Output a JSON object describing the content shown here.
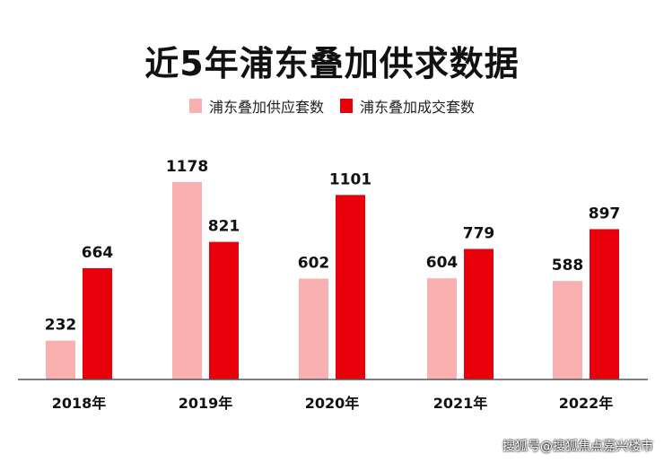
{
  "chart_data": {
    "type": "bar",
    "title": "近5年浦东叠加供求数据",
    "categories": [
      "2018年",
      "2019年",
      "2020年",
      "2021年",
      "2022年"
    ],
    "series": [
      {
        "name": "浦东叠加供应套数",
        "color": "#f9b0b0",
        "values": [
          232,
          1178,
          602,
          604,
          588
        ]
      },
      {
        "name": "浦东叠加成交套数",
        "color": "#e8000b",
        "values": [
          664,
          821,
          1101,
          779,
          897
        ]
      }
    ],
    "ylim": [
      0,
      1250
    ],
    "grid": false,
    "legend_position": "top-center"
  },
  "watermark": "搜狐号@搜狐焦点嘉兴楼市"
}
